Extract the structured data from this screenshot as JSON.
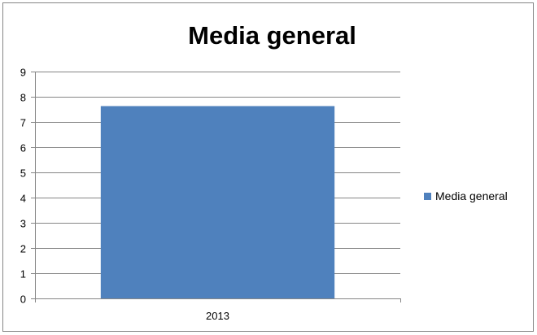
{
  "chart_data": {
    "type": "bar",
    "title": "Media general",
    "categories": [
      "2013"
    ],
    "series": [
      {
        "name": "Media general",
        "values": [
          7.63
        ],
        "color": "#4F81BD"
      }
    ],
    "ylim": [
      0,
      9
    ],
    "y_ticks": [
      "0",
      "1",
      "2",
      "3",
      "4",
      "5",
      "6",
      "7",
      "8",
      "9"
    ],
    "grid": true,
    "legend": "right",
    "xlabel": "",
    "ylabel": ""
  }
}
